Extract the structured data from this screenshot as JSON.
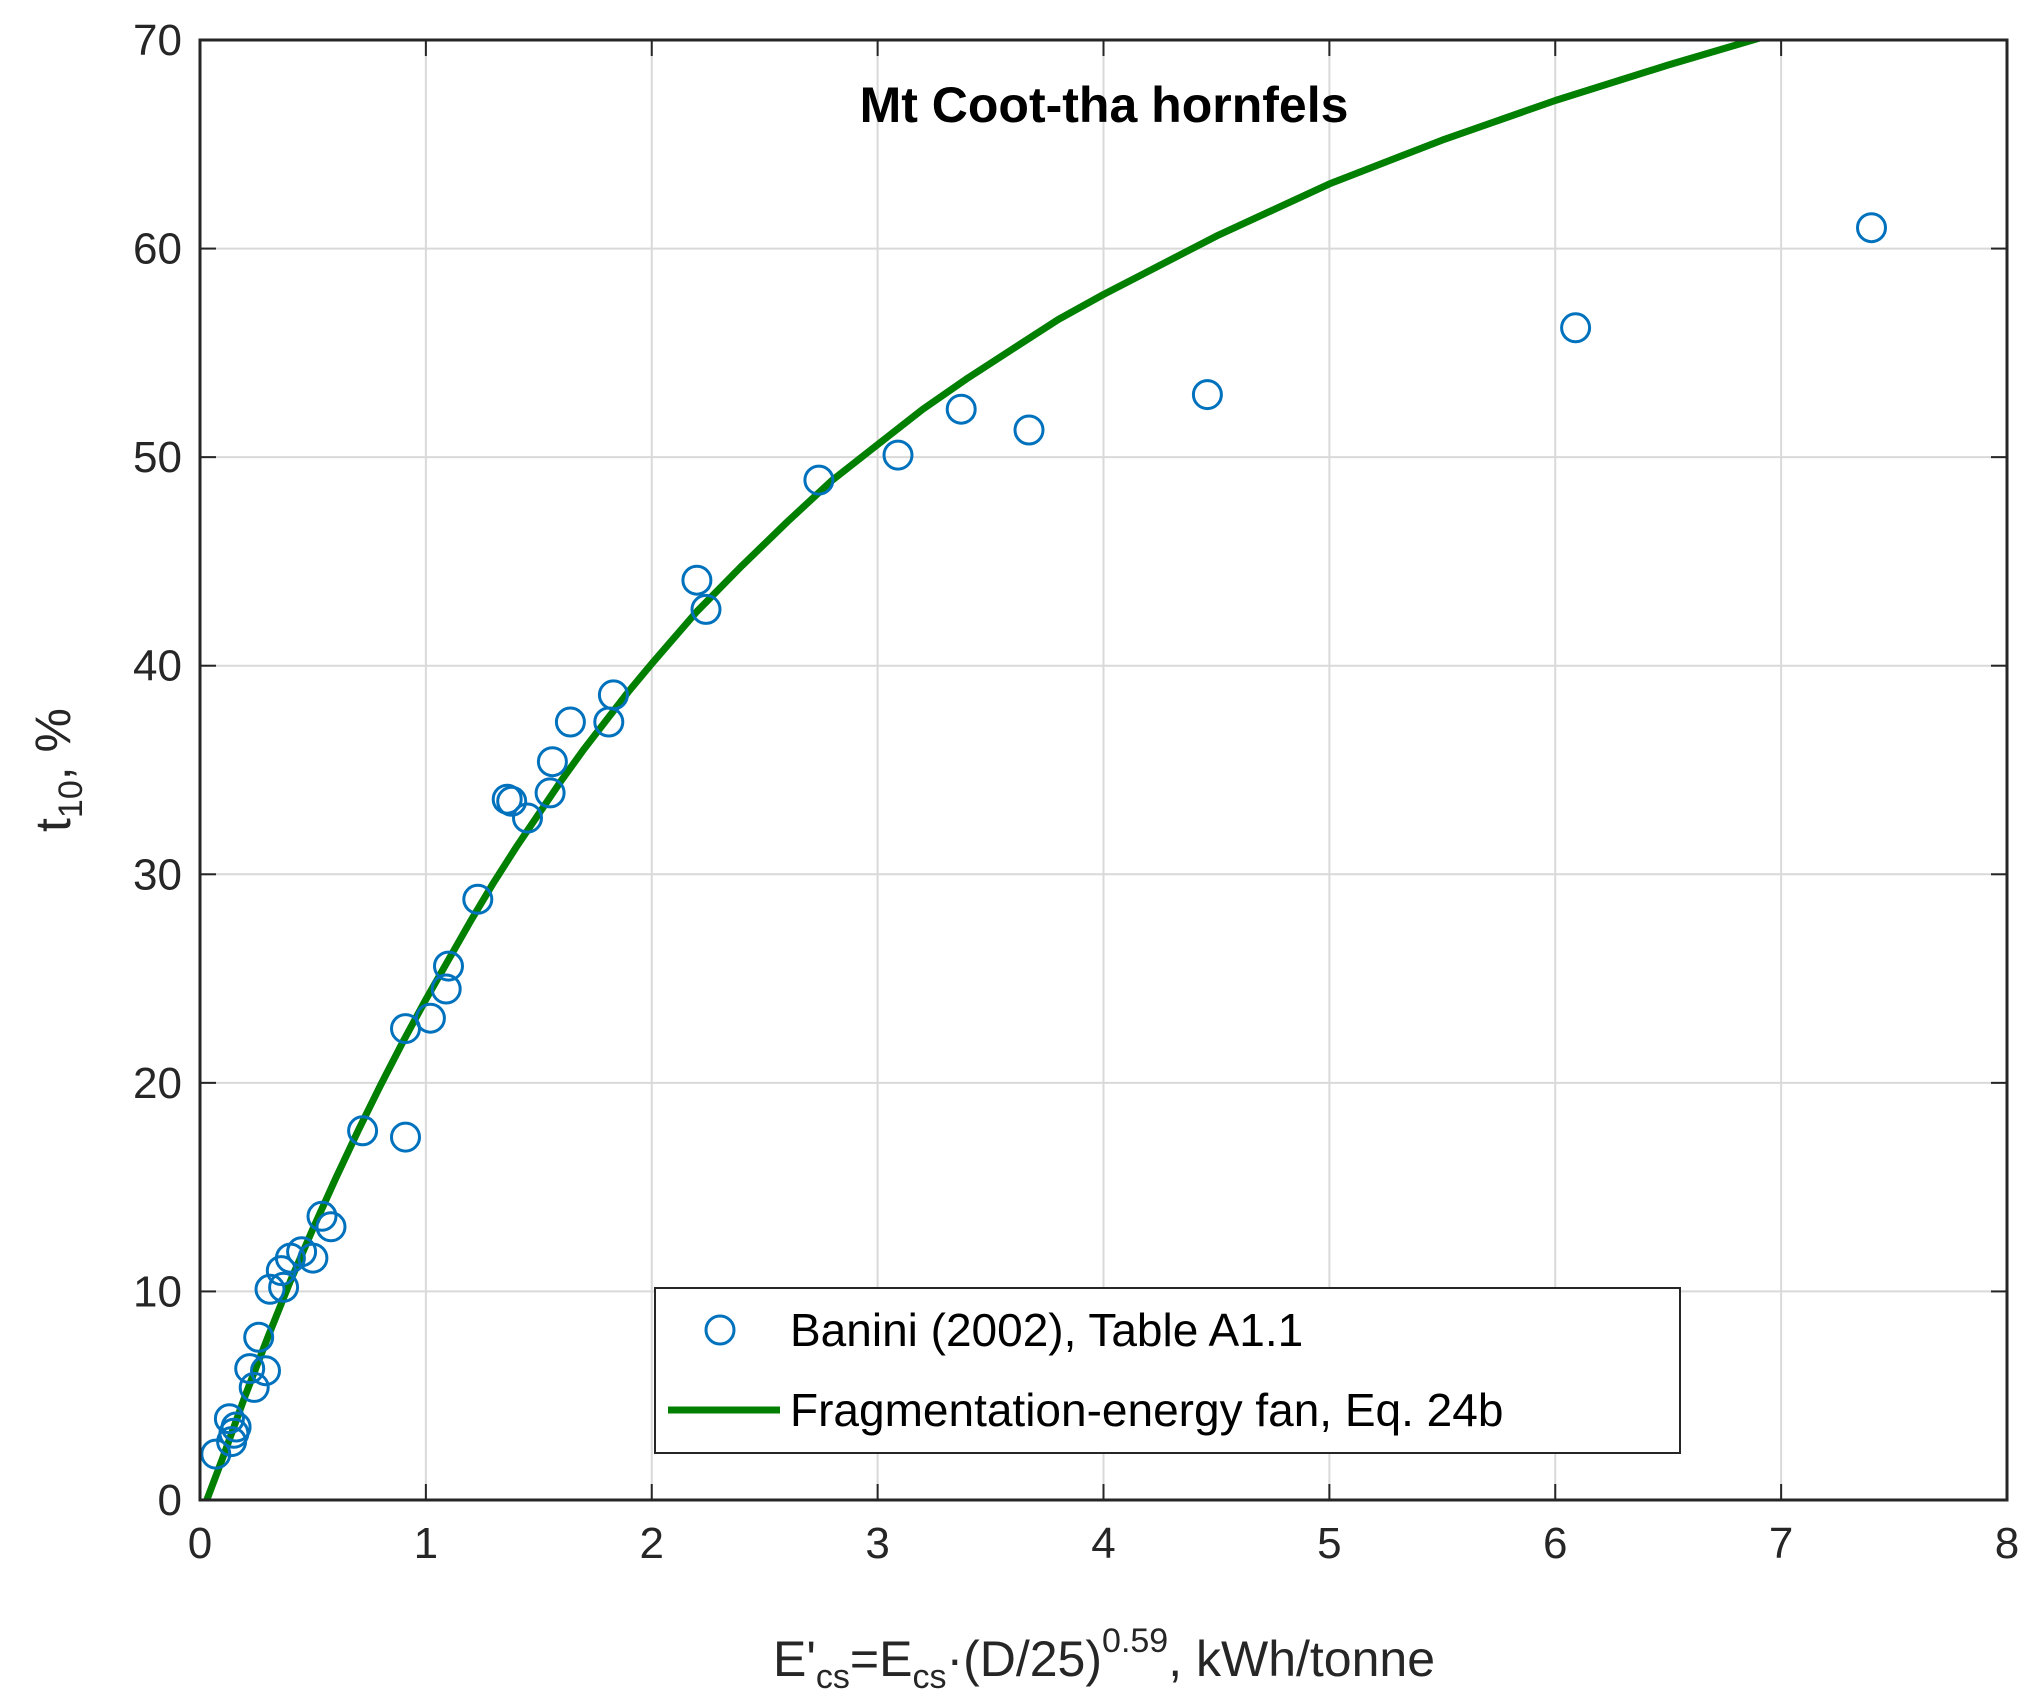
{
  "chart_data": {
    "type": "scatter",
    "title": "Mt Coot-tha hornfels",
    "xlabel": {
      "prefix": "E'",
      "sub1": "cs",
      "mid": "=E",
      "sub2": "cs",
      "after": "·(D/25)",
      "sup": "0.59",
      "suffix": ", kWh/tonne"
    },
    "ylabel": {
      "main": "t",
      "sub": "10",
      "suffix": ", %"
    },
    "xlim": [
      0,
      8
    ],
    "ylim": [
      0,
      70
    ],
    "xticks": [
      "0",
      "1",
      "2",
      "3",
      "4",
      "5",
      "6",
      "7",
      "8"
    ],
    "yticks": [
      "0",
      "10",
      "20",
      "30",
      "40",
      "50",
      "60",
      "70"
    ],
    "grid": true,
    "legend_position": "bottom-center",
    "series": [
      {
        "name": "Banini (2002), Table A1.1",
        "kind": "scatter",
        "marker": "open-circle",
        "color": "#0072BD",
        "points": [
          [
            0.07,
            2.2
          ],
          [
            0.14,
            2.8
          ],
          [
            0.15,
            3.2
          ],
          [
            0.16,
            3.5
          ],
          [
            0.13,
            3.9
          ],
          [
            0.24,
            5.4
          ],
          [
            0.29,
            6.2
          ],
          [
            0.22,
            6.3
          ],
          [
            0.26,
            7.8
          ],
          [
            0.31,
            10.1
          ],
          [
            0.37,
            10.2
          ],
          [
            0.36,
            11.0
          ],
          [
            0.4,
            11.6
          ],
          [
            0.45,
            11.9
          ],
          [
            0.5,
            11.6
          ],
          [
            0.54,
            13.6
          ],
          [
            0.58,
            13.1
          ],
          [
            0.72,
            17.7
          ],
          [
            0.91,
            17.4
          ],
          [
            0.91,
            22.6
          ],
          [
            1.02,
            23.1
          ],
          [
            1.09,
            24.5
          ],
          [
            1.1,
            25.6
          ],
          [
            1.23,
            28.8
          ],
          [
            1.36,
            33.6
          ],
          [
            1.38,
            33.5
          ],
          [
            1.45,
            32.7
          ],
          [
            1.55,
            33.9
          ],
          [
            1.56,
            35.4
          ],
          [
            1.64,
            37.3
          ],
          [
            1.81,
            37.3
          ],
          [
            1.83,
            38.6
          ],
          [
            2.2,
            44.1
          ],
          [
            2.24,
            42.7
          ],
          [
            2.74,
            48.9
          ],
          [
            3.09,
            50.1
          ],
          [
            3.37,
            52.3
          ],
          [
            3.67,
            51.3
          ],
          [
            4.46,
            53.0
          ],
          [
            6.09,
            56.2
          ],
          [
            7.4,
            61.0
          ]
        ]
      },
      {
        "name": "Fragmentation-energy fan, Eq. 24b",
        "kind": "line",
        "color": "#007F00",
        "points": [
          [
            0.03,
            0.0
          ],
          [
            0.1,
            2.0
          ],
          [
            0.2,
            5.0
          ],
          [
            0.3,
            7.8
          ],
          [
            0.4,
            10.5
          ],
          [
            0.5,
            13.0
          ],
          [
            0.6,
            15.4
          ],
          [
            0.7,
            17.7
          ],
          [
            0.8,
            19.9
          ],
          [
            0.9,
            22.0
          ],
          [
            1.0,
            24.0
          ],
          [
            1.1,
            25.9
          ],
          [
            1.2,
            27.8
          ],
          [
            1.3,
            29.6
          ],
          [
            1.4,
            31.3
          ],
          [
            1.5,
            32.9
          ],
          [
            1.6,
            34.5
          ],
          [
            1.7,
            36.0
          ],
          [
            1.8,
            37.4
          ],
          [
            1.9,
            38.8
          ],
          [
            2.0,
            40.1
          ],
          [
            2.2,
            42.6
          ],
          [
            2.4,
            44.8
          ],
          [
            2.6,
            46.9
          ],
          [
            2.8,
            48.9
          ],
          [
            3.0,
            50.6
          ],
          [
            3.2,
            52.3
          ],
          [
            3.4,
            53.8
          ],
          [
            3.6,
            55.2
          ],
          [
            3.8,
            56.6
          ],
          [
            4.0,
            57.8
          ],
          [
            4.5,
            60.6
          ],
          [
            5.0,
            63.1
          ],
          [
            5.5,
            65.2
          ],
          [
            6.0,
            67.1
          ],
          [
            6.5,
            68.8
          ],
          [
            7.0,
            70.4
          ],
          [
            7.5,
            71.9
          ],
          [
            8.0,
            73.2
          ]
        ]
      }
    ]
  }
}
